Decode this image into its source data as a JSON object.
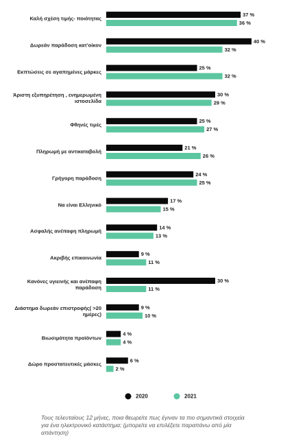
{
  "chart_data": {
    "type": "bar",
    "orientation": "horizontal",
    "categories": [
      "Καλή σχέση τιμής- ποιότητας",
      "Δωρεάν παράδοση κατ'οίκον",
      "Εκπτώσεις σε αγαπημένες μάρκες",
      "Άριστη εξυπηρέτηση , ενημερωμένη ιστοσελίδα",
      "Φθηνές τιμές",
      "Πληρωμή με αντικαταβολή",
      "Γρήγορη παράδοση",
      "Να είναι Ελληνικό",
      "Ασφαλής ανέπαφη πληρωμή",
      "Ακριβής επικοινωνία",
      "Κανόνες υγιεινής και ανέπαφη παράδοση",
      "Διάστημα δωρεάν επιστροφής( >20 ημέρες)",
      "Βιωσιμότητα προϊόντων",
      "Δώρο προστατευτικές μάσκες"
    ],
    "series": [
      {
        "name": "2020",
        "color": "#0a0a0a",
        "values": [
          37,
          40,
          25,
          30,
          25,
          21,
          24,
          17,
          14,
          9,
          30,
          9,
          4,
          6
        ],
        "value_labels": [
          "37 %",
          "40 %",
          "25 %",
          "30 %",
          "25 %",
          "21 %",
          "24 %",
          "17 %",
          "14 %",
          "9 %",
          "30 %",
          "9 %",
          "4 %",
          "6 %"
        ]
      },
      {
        "name": "2021",
        "color": "#5cc6a0",
        "values": [
          36,
          32,
          32,
          29,
          27,
          26,
          25,
          15,
          13,
          11,
          11,
          10,
          4,
          2
        ],
        "value_labels": [
          "36 %",
          "32 %",
          "32 %",
          "29 %",
          "27 %",
          "26 %",
          "25 %",
          "15 %",
          "13 %",
          "11 %",
          "11 %",
          "10 %",
          "4 %",
          "2 %"
        ]
      }
    ],
    "legend": "bottom",
    "note": "Τους τελευταίους 12 μήνες, ποια θεωρείτε πως έγιναν τα πιο σημαντικά στοιχεία για ένα ηλεκτρονικό κατάστημα; (μπορείτε να επιλέξετε παραπάνω από μία απάντηση)"
  }
}
